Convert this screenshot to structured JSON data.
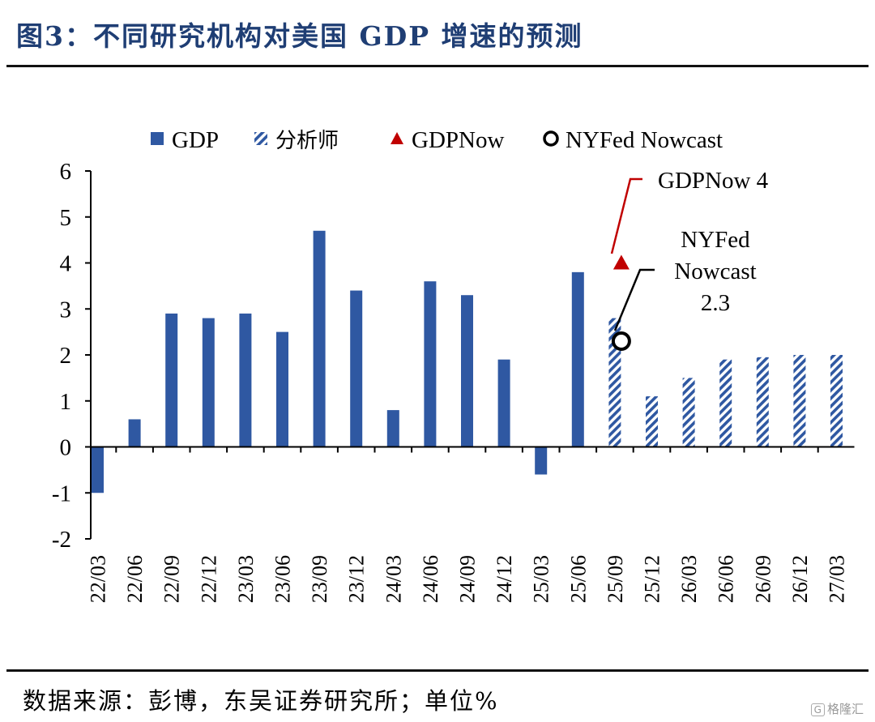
{
  "title": "图3：不同研究机构对美国 GDP 增速的预测",
  "footer": "数据来源：彭博，东吴证券研究所；单位%",
  "watermark": "格隆汇",
  "colors": {
    "title": "#1f3e74",
    "bar": "#2f58a2",
    "gdpnow": "#c00000"
  },
  "chart_data": {
    "type": "bar",
    "categories": [
      "22/03",
      "22/06",
      "22/09",
      "22/12",
      "23/03",
      "23/06",
      "23/09",
      "23/12",
      "24/03",
      "24/06",
      "24/09",
      "24/12",
      "25/03",
      "25/06",
      "25/09",
      "25/12",
      "26/03",
      "26/06",
      "26/09",
      "26/12",
      "27/03"
    ],
    "series": [
      {
        "name": "GDP",
        "style": "solid",
        "values": [
          -1.0,
          0.6,
          2.9,
          2.8,
          2.9,
          2.5,
          4.7,
          3.4,
          0.8,
          3.6,
          3.3,
          1.9,
          -0.6,
          3.8,
          null,
          null,
          null,
          null,
          null,
          null,
          null
        ]
      },
      {
        "name": "分析师",
        "style": "hatched",
        "values": [
          null,
          null,
          null,
          null,
          null,
          null,
          null,
          null,
          null,
          null,
          null,
          null,
          null,
          null,
          2.8,
          1.1,
          1.5,
          1.9,
          1.95,
          2.0,
          2.0
        ]
      },
      {
        "name": "GDPNow",
        "style": "triangle",
        "category": "25/09",
        "value": 4.0
      },
      {
        "name": "NYFed Nowcast",
        "style": "circle",
        "category": "25/09",
        "value": 2.3
      }
    ],
    "annotations": [
      {
        "target": "GDPNow",
        "lines": [
          "GDPNow 4"
        ]
      },
      {
        "target": "NYFed Nowcast",
        "lines": [
          "NYFed",
          "Nowcast",
          "2.3"
        ]
      }
    ],
    "ylim": [
      -2,
      6
    ],
    "yticks": [
      "6",
      "5",
      "4",
      "3",
      "2",
      "1",
      "0",
      "-1",
      "-2"
    ],
    "legend_position": "top",
    "grid": false
  }
}
